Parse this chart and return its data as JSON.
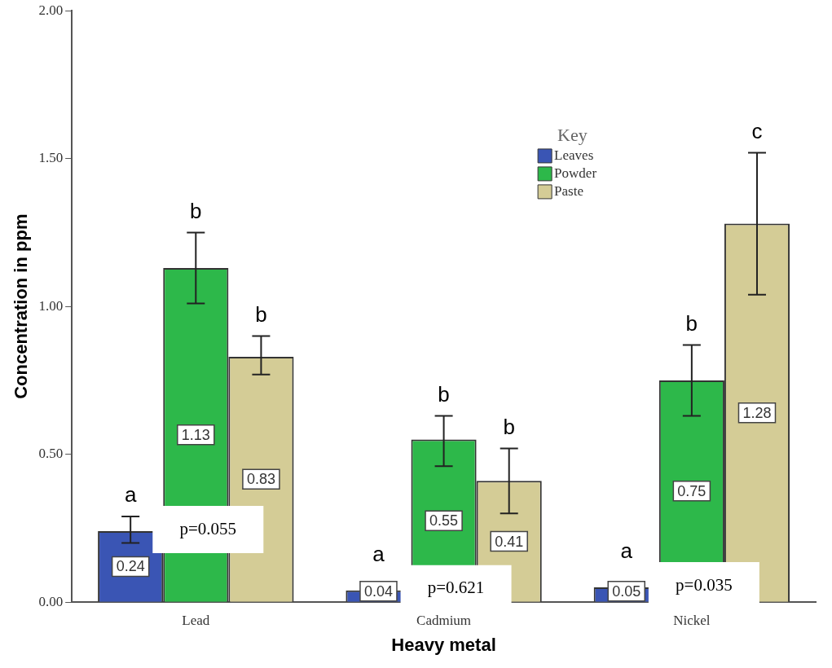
{
  "chart_data": {
    "type": "bar",
    "xlabel": "Heavy metal",
    "ylabel": "Concentration in ppm",
    "legend_title": "Key",
    "categories": [
      "Lead",
      "Cadmium",
      "Nickel"
    ],
    "series": [
      {
        "name": "Leaves",
        "color": "#3a55b4",
        "values": [
          0.24,
          0.04,
          0.05
        ],
        "errors": [
          [
            0.2,
            0.29
          ],
          null,
          null
        ]
      },
      {
        "name": "Powder",
        "color": "#2db84a",
        "values": [
          1.13,
          0.55,
          0.75
        ],
        "errors": [
          [
            1.01,
            1.25
          ],
          [
            0.46,
            0.63
          ],
          [
            0.63,
            0.87
          ]
        ]
      },
      {
        "name": "Paste",
        "color": "#d4cc96",
        "values": [
          0.83,
          0.41,
          1.28
        ],
        "errors": [
          [
            0.77,
            0.9
          ],
          [
            0.3,
            0.52
          ],
          [
            1.04,
            1.52
          ]
        ]
      }
    ],
    "ylim": [
      0,
      2
    ],
    "yticks": [
      {
        "value": 0,
        "label": "0.00"
      },
      {
        "value": 0.5,
        "label": "0.50"
      },
      {
        "value": 1,
        "label": "1.00"
      },
      {
        "value": 1.5,
        "label": "1.50"
      },
      {
        "value": 2,
        "label": "2.00"
      }
    ],
    "grid": false,
    "legend": "top right",
    "data_labels": true,
    "annotations": [
      "a",
      "b",
      "b",
      "a",
      "b",
      "b",
      "a",
      "b",
      "c",
      "p=0.055",
      "p=0.621",
      "p=0.035"
    ]
  }
}
